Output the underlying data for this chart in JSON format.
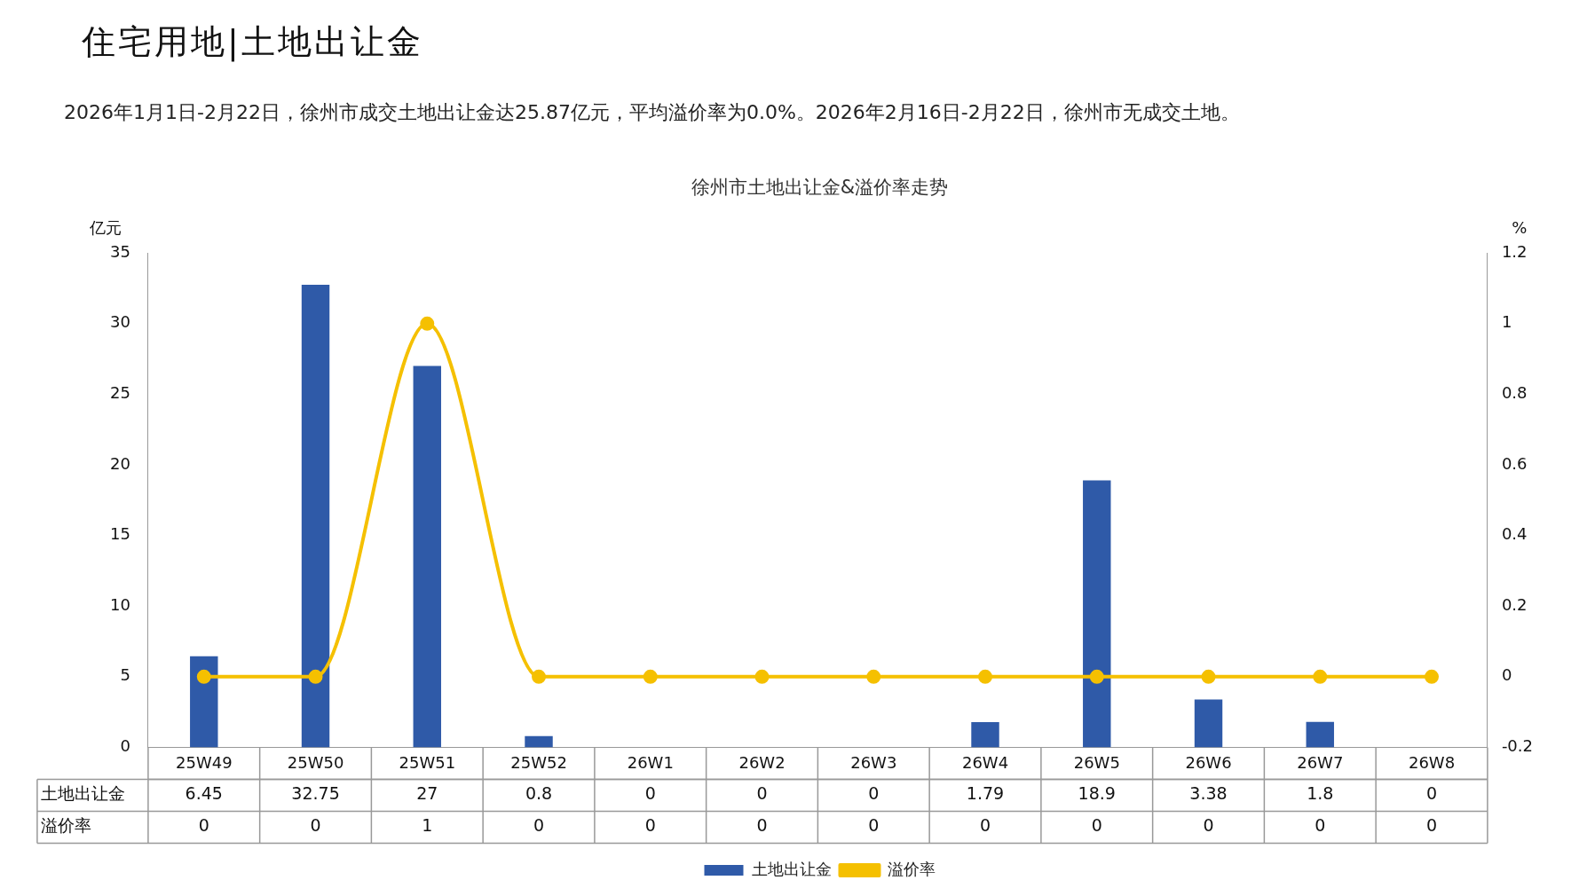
{
  "chart_data": {
    "type": "bar",
    "title": "住宅用地|土地出让金",
    "subtitle": "2026年1月1日-2月22日，徐州市成交土地出让金达25.87亿元，平均溢价率为0.0%。2026年2月16日-2月22日，徐州市无成交土地。",
    "annotations": [
      "徐州市土地出让金&溢价率走势"
    ],
    "categories": [
      "25W49",
      "25W50",
      "25W51",
      "25W52",
      "26W1",
      "26W2",
      "26W3",
      "26W4",
      "26W5",
      "26W6",
      "26W7",
      "26W8"
    ],
    "series": [
      {
        "name": "土地出让金",
        "color": "#2f5aa8",
        "values": [
          6.45,
          32.75,
          27,
          0.8,
          0,
          0,
          0,
          1.79,
          18.9,
          3.38,
          1.8,
          0
        ]
      },
      {
        "name": "溢价率",
        "type": "line",
        "axis": "y2",
        "color": "#f5c000",
        "marker": "circle",
        "values": [
          0,
          0,
          1,
          0,
          0,
          0,
          0,
          0,
          0,
          0,
          0,
          0
        ]
      }
    ],
    "ylabel": "亿元",
    "y2label": "%",
    "ylim": [
      0,
      35
    ],
    "yticks": [
      0,
      5,
      10,
      15,
      20,
      25,
      30,
      35
    ],
    "y2lim": [
      -0.2,
      1.2
    ],
    "y2ticks": [
      -0.2,
      0,
      0.2,
      0.4,
      0.6,
      0.8,
      1,
      1.2
    ],
    "data_labels": true,
    "legend": "bottom",
    "grid": false
  }
}
